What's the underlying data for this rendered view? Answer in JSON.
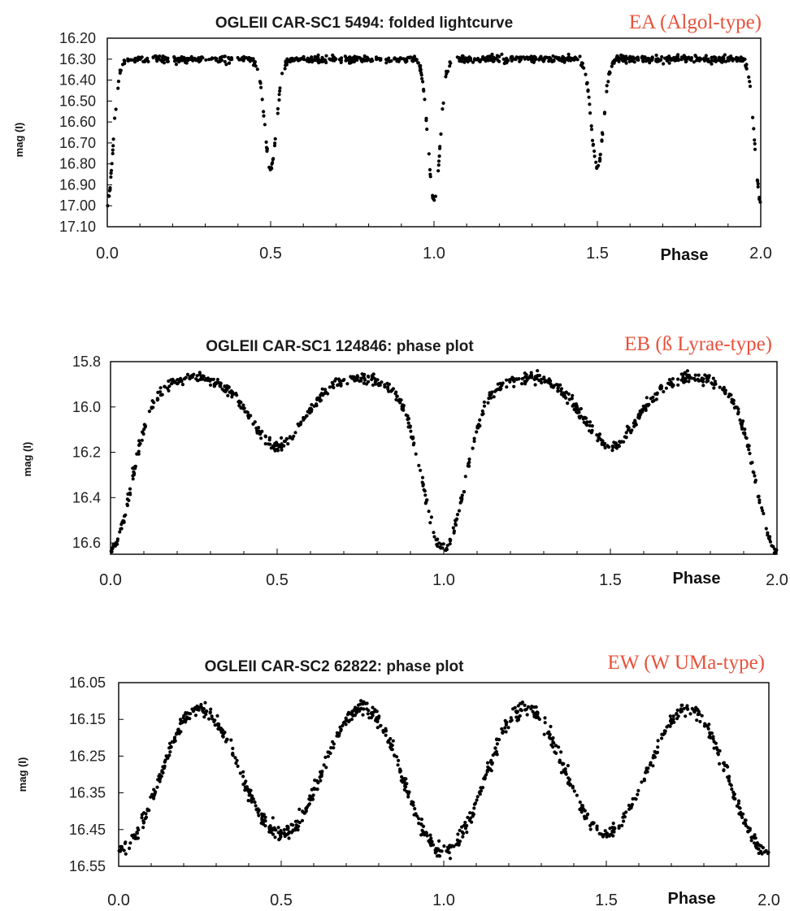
{
  "chart_data": [
    {
      "type": "scatter",
      "title": "OGLEII CAR-SC1 5494: folded lightcurve",
      "class_label": "EA (Algol-type)",
      "class_color": "#e8513a",
      "ylabel": "mag (I)",
      "xlabel": "Phase",
      "ylim": [
        16.2,
        17.1
      ],
      "y_inverted": true,
      "xlim": [
        0.0,
        2.0
      ],
      "yticks": [
        "16.20",
        "16.30",
        "16.40",
        "16.50",
        "16.60",
        "16.70",
        "16.80",
        "16.90",
        "17.00",
        "17.10"
      ],
      "xticks": [
        "0.0",
        "0.5",
        "1.0",
        "1.5",
        "2.0"
      ],
      "model": {
        "base": 16.3,
        "primary_depth": 0.68,
        "secondary_depth": 0.52,
        "width": 0.028,
        "period": 1.0
      },
      "point_color": "#000000"
    },
    {
      "type": "scatter",
      "title": "OGLEII CAR-SC1 124846: phase plot",
      "class_label": "EB (ß Lyrae-type)",
      "class_color": "#e8513a",
      "ylabel": "mag (I)",
      "xlabel": "Phase",
      "ylim": [
        15.8,
        16.65
      ],
      "y_inverted": true,
      "xlim": [
        0.0,
        2.0
      ],
      "yticks": [
        "15.8",
        "16.0",
        "16.2",
        "16.4",
        "16.6"
      ],
      "xticks": [
        "0.0",
        "0.5",
        "1.0",
        "1.5",
        "2.0"
      ],
      "model": {
        "max_mag": 15.87,
        "primary_min": 16.63,
        "secondary_min": 16.17,
        "period": 1.0
      },
      "point_color": "#000000"
    },
    {
      "type": "scatter",
      "title": "OGLEII CAR-SC2 62822: phase plot",
      "class_label": "EW (W UMa-type)",
      "class_color": "#e8513a",
      "ylabel": "mag (I)",
      "xlabel": "Phase",
      "ylim": [
        16.05,
        16.55
      ],
      "y_inverted": true,
      "xlim": [
        0.0,
        2.0
      ],
      "yticks": [
        "16.05",
        "16.15",
        "16.25",
        "16.35",
        "16.45",
        "16.55"
      ],
      "xticks": [
        "0.0",
        "0.5",
        "1.0",
        "1.5",
        "2.0"
      ],
      "model": {
        "max_mag": 16.12,
        "primary_min": 16.51,
        "secondary_min": 16.46,
        "period": 1.0
      },
      "point_color": "#000000"
    }
  ]
}
